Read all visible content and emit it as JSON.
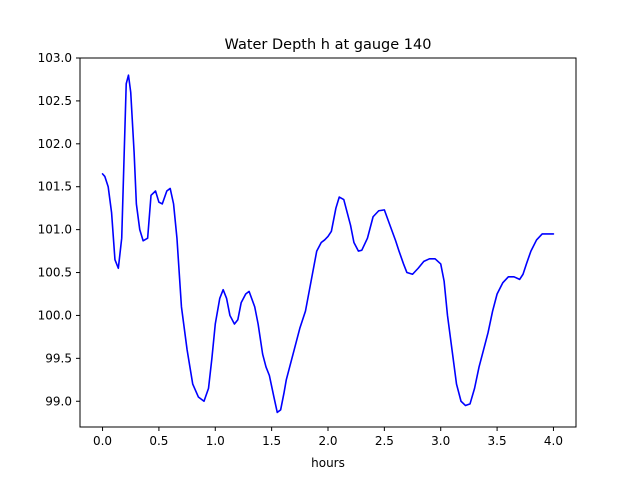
{
  "chart_data": {
    "type": "line",
    "title": "Water Depth h at gauge 140",
    "xlabel": "hours",
    "ylabel": "",
    "xlim": [
      -0.2,
      4.2
    ],
    "ylim": [
      98.7,
      103.0
    ],
    "xticks": [
      0.0,
      0.5,
      1.0,
      1.5,
      2.0,
      2.5,
      3.0,
      3.5,
      4.0
    ],
    "xtick_labels": [
      "0.0",
      "0.5",
      "1.0",
      "1.5",
      "2.0",
      "2.5",
      "3.0",
      "3.5",
      "4.0"
    ],
    "yticks": [
      99.0,
      99.5,
      100.0,
      100.5,
      101.0,
      101.5,
      102.0,
      102.5,
      103.0
    ],
    "ytick_labels": [
      "99.0",
      "99.5",
      "100.0",
      "100.5",
      "101.0",
      "101.5",
      "102.0",
      "102.5",
      "103.0"
    ],
    "grid": false,
    "series": [
      {
        "color": "#0000ff",
        "x": [
          0.0,
          0.02,
          0.05,
          0.08,
          0.11,
          0.14,
          0.17,
          0.19,
          0.21,
          0.23,
          0.25,
          0.28,
          0.3,
          0.33,
          0.36,
          0.4,
          0.43,
          0.47,
          0.5,
          0.53,
          0.57,
          0.6,
          0.63,
          0.66,
          0.7,
          0.75,
          0.8,
          0.85,
          0.9,
          0.94,
          0.97,
          1.0,
          1.04,
          1.07,
          1.1,
          1.13,
          1.17,
          1.2,
          1.23,
          1.27,
          1.3,
          1.35,
          1.38,
          1.42,
          1.45,
          1.48,
          1.52,
          1.55,
          1.58,
          1.61,
          1.63,
          1.66,
          1.7,
          1.75,
          1.8,
          1.85,
          1.9,
          1.94,
          1.97,
          2.0,
          2.03,
          2.07,
          2.1,
          2.14,
          2.17,
          2.2,
          2.23,
          2.27,
          2.3,
          2.35,
          2.4,
          2.45,
          2.5,
          2.55,
          2.6,
          2.63,
          2.67,
          2.7,
          2.75,
          2.8,
          2.85,
          2.9,
          2.95,
          3.0,
          3.03,
          3.06,
          3.1,
          3.14,
          3.18,
          3.22,
          3.26,
          3.3,
          3.34,
          3.38,
          3.42,
          3.46,
          3.5,
          3.55,
          3.6,
          3.65,
          3.7,
          3.73,
          3.76,
          3.8,
          3.85,
          3.9,
          3.95,
          4.0
        ],
        "y": [
          101.65,
          101.62,
          101.5,
          101.2,
          100.65,
          100.55,
          100.9,
          101.8,
          102.7,
          102.8,
          102.6,
          101.9,
          101.3,
          101.0,
          100.87,
          100.9,
          101.4,
          101.45,
          101.32,
          101.3,
          101.45,
          101.48,
          101.3,
          100.9,
          100.1,
          99.6,
          99.2,
          99.05,
          99.0,
          99.15,
          99.5,
          99.9,
          100.2,
          100.3,
          100.2,
          100.0,
          99.9,
          99.95,
          100.15,
          100.25,
          100.28,
          100.1,
          99.9,
          99.55,
          99.4,
          99.3,
          99.05,
          98.87,
          98.9,
          99.1,
          99.25,
          99.4,
          99.6,
          99.85,
          100.05,
          100.4,
          100.75,
          100.85,
          100.88,
          100.92,
          100.98,
          101.25,
          101.38,
          101.35,
          101.2,
          101.05,
          100.85,
          100.75,
          100.76,
          100.9,
          101.15,
          101.22,
          101.23,
          101.05,
          100.87,
          100.75,
          100.6,
          100.5,
          100.48,
          100.55,
          100.63,
          100.66,
          100.66,
          100.6,
          100.4,
          100.0,
          99.6,
          99.2,
          99.0,
          98.95,
          98.97,
          99.15,
          99.4,
          99.6,
          99.8,
          100.05,
          100.25,
          100.38,
          100.45,
          100.45,
          100.42,
          100.48,
          100.6,
          100.75,
          100.88,
          100.95,
          100.95,
          100.95
        ]
      }
    ]
  }
}
